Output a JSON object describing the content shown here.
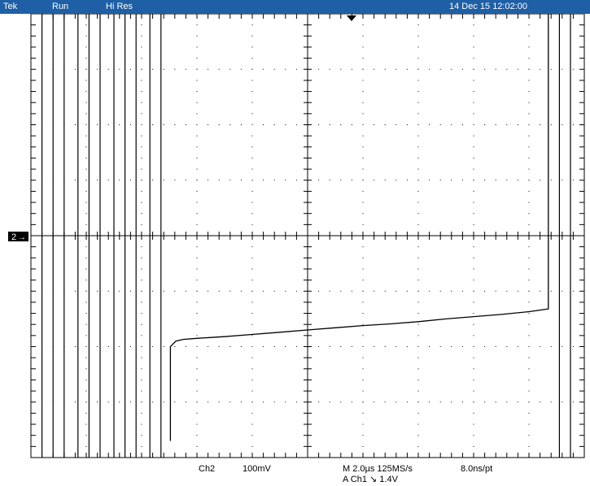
{
  "status_bar": {
    "brand": "Tek",
    "acquisition_state": "Run",
    "acquisition_mode": "Hi Res",
    "timestamp": "14 Dec 15 12:02:00"
  },
  "channel_marker": {
    "label": "2",
    "arrow": "→"
  },
  "readouts": {
    "channel": "Ch2",
    "volts_per_div": "100mV",
    "timebase": "M 2.0µs 125MS/s",
    "record_resolution": "8.0ns/pt",
    "trigger_line": "A Ch1  ↘  1.4V"
  },
  "colors": {
    "status_bar_bg": "#1f5fa5",
    "trace": "#000000"
  },
  "icons": {
    "trigger_position": "triangle-down-icon",
    "ground_marker": "arrow-right-icon"
  },
  "chart_data": {
    "type": "line",
    "title": "",
    "xlabel": "",
    "ylabel": "",
    "grid": true,
    "x_divisions": 10,
    "y_divisions": 8,
    "xlim": [
      0,
      10
    ],
    "ylim": [
      -4,
      4
    ],
    "vertical_lines_div": [
      0.2,
      0.4,
      0.6,
      0.85,
      1.05,
      1.25,
      1.5,
      1.7,
      1.9,
      2.15,
      2.35,
      9.55,
      9.75
    ],
    "series": [
      {
        "x": [
          2.52,
          2.52,
          2.57,
          2.62,
          2.75,
          3.0,
          3.5,
          4.0,
          4.5,
          5.0,
          5.5,
          6.0,
          6.5,
          7.0,
          7.5,
          8.0,
          8.5,
          9.0,
          9.35,
          9.35
        ],
        "y": [
          -3.7,
          -2.0,
          -1.95,
          -1.9,
          -1.87,
          -1.85,
          -1.82,
          -1.78,
          -1.74,
          -1.7,
          -1.66,
          -1.62,
          -1.59,
          -1.55,
          -1.5,
          -1.46,
          -1.42,
          -1.37,
          -1.32,
          4.0
        ]
      }
    ]
  }
}
